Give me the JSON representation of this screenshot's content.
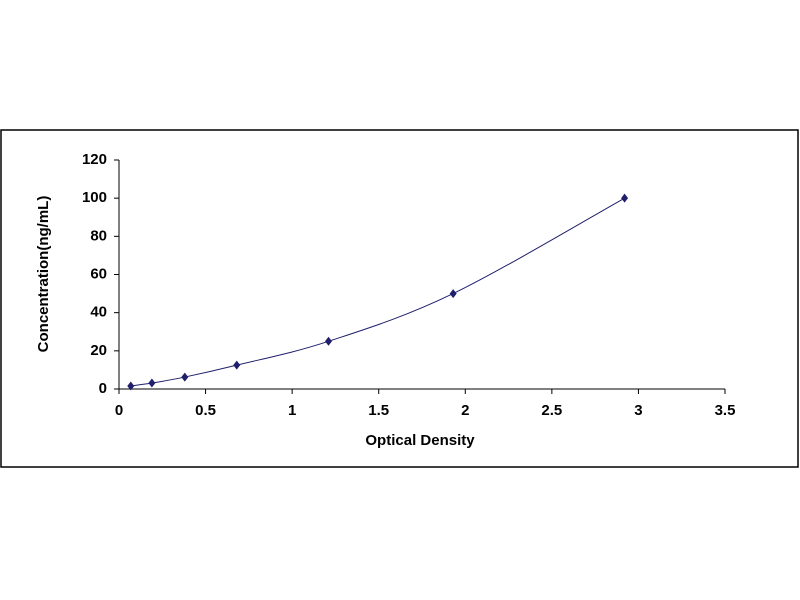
{
  "chart_data": {
    "type": "scatter",
    "xlabel": "Optical Density",
    "ylabel": "Concentration(ng/mL)",
    "x": [
      0.068,
      0.19,
      0.38,
      0.68,
      1.21,
      1.93,
      2.92
    ],
    "values": [
      1.56,
      3.12,
      6.25,
      12.5,
      25,
      50,
      100
    ],
    "color": "#1f1f6b",
    "line": true,
    "xlim": [
      0,
      3.5
    ],
    "xticks": [
      0,
      0.5,
      1,
      1.5,
      2,
      2.5,
      3,
      3.5
    ],
    "ylim": [
      0,
      120
    ],
    "yticks": [
      0,
      20,
      40,
      60,
      80,
      100,
      120
    ]
  }
}
